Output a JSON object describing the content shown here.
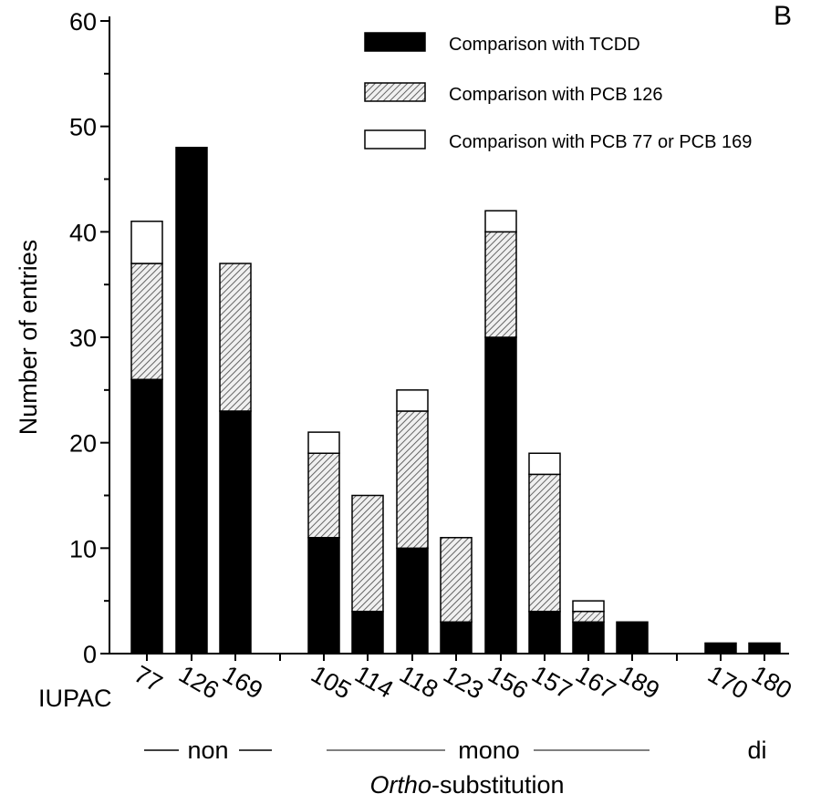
{
  "chart_data": {
    "type": "bar",
    "stacked": true,
    "panel_label": "B",
    "ylabel": "Number of entries",
    "xlabel_prefix": "IUPAC",
    "xlabel_italic": "Ortho",
    "xlabel_rest": "-substitution",
    "ylim": [
      0,
      60
    ],
    "yticks": [
      "0",
      "10",
      "20",
      "30",
      "40",
      "50",
      "60"
    ],
    "categories": [
      "77",
      "126",
      "169",
      "105",
      "114",
      "118",
      "123",
      "156",
      "157",
      "167",
      "189",
      "170",
      "180"
    ],
    "groups": [
      {
        "label": "non",
        "members": [
          "77",
          "126",
          "169"
        ]
      },
      {
        "label": "mono",
        "members": [
          "105",
          "114",
          "118",
          "123",
          "156",
          "157",
          "167",
          "189"
        ]
      },
      {
        "label": "di",
        "members": [
          "170",
          "180"
        ]
      }
    ],
    "series": [
      {
        "name": "Comparison with TCDD",
        "values": [
          26,
          48,
          23,
          11,
          4,
          10,
          3,
          30,
          4,
          3,
          3,
          1,
          1
        ]
      },
      {
        "name": "Comparison with PCB 126",
        "values": [
          11,
          0,
          14,
          8,
          11,
          13,
          8,
          10,
          13,
          1,
          0,
          0,
          0
        ]
      },
      {
        "name": "Comparison with PCB 77 or PCB 169",
        "values": [
          4,
          0,
          0,
          2,
          0,
          2,
          0,
          2,
          2,
          1,
          0,
          0,
          0
        ]
      }
    ],
    "legend_position": "top-right",
    "grid": false,
    "colors": [
      "#000000",
      "hatched",
      "#ffffff"
    ]
  }
}
